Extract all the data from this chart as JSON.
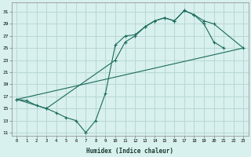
{
  "title": "",
  "xlabel": "Humidex (Indice chaleur)",
  "ylabel": "",
  "bg_color": "#d8f0ee",
  "grid_color": "#b8d8d4",
  "line_color": "#1a6b5a",
  "xlim": [
    -0.5,
    23.5
  ],
  "ylim": [
    10.5,
    32.5
  ],
  "xticks": [
    0,
    1,
    2,
    3,
    4,
    5,
    6,
    7,
    8,
    9,
    10,
    11,
    12,
    13,
    14,
    15,
    16,
    17,
    18,
    19,
    20,
    21,
    22,
    23
  ],
  "yticks": [
    11,
    13,
    15,
    17,
    19,
    21,
    23,
    25,
    27,
    29,
    31
  ],
  "line1_x": [
    0,
    1,
    2,
    3,
    4,
    5,
    6,
    7,
    8,
    9,
    10,
    11,
    12,
    13,
    14,
    15,
    16,
    17,
    18,
    19,
    20,
    21
  ],
  "line1_y": [
    16.5,
    16.3,
    15.5,
    15.0,
    14.3,
    13.5,
    13.0,
    11.0,
    13.0,
    17.5,
    25.5,
    27.0,
    27.2,
    28.5,
    29.5,
    30.0,
    29.5,
    31.2,
    30.5,
    29.0,
    26.0,
    25.0
  ],
  "line2_x": [
    0,
    23
  ],
  "line2_y": [
    16.5,
    25.0
  ],
  "line3_x": [
    0,
    3,
    10,
    11,
    12,
    13,
    14,
    15,
    16,
    17,
    18,
    19,
    20,
    23
  ],
  "line3_y": [
    16.5,
    15.0,
    23.0,
    26.0,
    27.0,
    28.5,
    29.5,
    30.0,
    29.5,
    31.2,
    30.5,
    29.5,
    29.0,
    25.0
  ]
}
